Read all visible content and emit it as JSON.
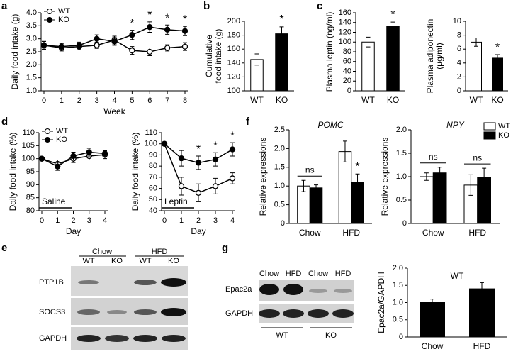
{
  "panel_labels": [
    "a",
    "b",
    "c",
    "d",
    "e",
    "f",
    "g"
  ],
  "chart_data": [
    {
      "type": "line",
      "xlabel": "Week",
      "ylabel": "Daily food intake (g)",
      "xlim": [
        0,
        8
      ],
      "xticks": [
        0,
        1,
        2,
        3,
        4,
        5,
        6,
        7,
        8
      ],
      "ylim": [
        1,
        4
      ],
      "yticks": [
        {
          "value": 1,
          "label": "1.0"
        },
        1.5,
        {
          "value": 2,
          "label": "2.0"
        },
        2.5,
        {
          "value": 3,
          "label": "3.0"
        },
        3.5,
        {
          "value": 4,
          "label": "4.0"
        }
      ],
      "x": [
        0,
        1,
        2,
        3,
        4,
        5,
        6,
        7,
        8
      ],
      "legend": "top-left",
      "series": [
        {
          "name": "WT",
          "color": "#000000",
          "marker_fill": "#ffffff",
          "values": [
            2.75,
            2.65,
            2.7,
            2.75,
            2.95,
            2.55,
            2.5,
            2.65,
            2.7
          ],
          "errors": [
            0.15,
            0.12,
            0.12,
            0.12,
            0.15,
            0.15,
            0.15,
            0.12,
            0.15
          ]
        },
        {
          "name": "KO",
          "color": "#000000",
          "marker_fill": "#000000",
          "values": [
            2.75,
            2.7,
            2.75,
            3.0,
            2.9,
            3.15,
            3.45,
            3.35,
            3.3
          ],
          "errors": [
            0.15,
            0.12,
            0.12,
            0.15,
            0.15,
            0.18,
            0.2,
            0.18,
            0.18
          ]
        }
      ],
      "annotations": [
        {
          "text": "*",
          "x": 5
        },
        {
          "text": "*",
          "x": 6
        },
        {
          "text": "*",
          "x": 7
        },
        {
          "text": "*",
          "x": 8
        }
      ]
    },
    {
      "type": "bar",
      "ylabel": [
        "Cumulative",
        "food intake (g)"
      ],
      "categories": [
        "WT",
        "KO"
      ],
      "values": [
        145,
        182
      ],
      "errors": [
        8,
        10
      ],
      "colors": [
        "#ffffff",
        "#000000"
      ],
      "ylim": [
        100,
        200
      ],
      "yticks": [
        100,
        120,
        140,
        160,
        180,
        200
      ],
      "annotations": [
        {
          "text": "*",
          "category": 1
        }
      ]
    },
    {
      "type": "bar",
      "ylabel": "Plasma leptin (ng/ml)",
      "categories": [
        "WT",
        "KO"
      ],
      "values": [
        100,
        132
      ],
      "errors": [
        10,
        9
      ],
      "colors": [
        "#ffffff",
        "#000000"
      ],
      "ylim": [
        0,
        160
      ],
      "yticks": [
        0,
        20,
        40,
        60,
        80,
        100,
        120,
        140,
        160
      ],
      "annotations": [
        {
          "text": "*",
          "category": 1
        }
      ]
    },
    {
      "type": "bar",
      "ylabel": [
        "Plasma adiponectin",
        "(μg/ml)"
      ],
      "categories": [
        "WT",
        "KO"
      ],
      "values": [
        7,
        4.7
      ],
      "errors": [
        0.6,
        0.5
      ],
      "colors": [
        "#ffffff",
        "#000000"
      ],
      "ylim": [
        0,
        10
      ],
      "yticks": [
        0,
        2,
        4,
        6,
        8,
        10
      ],
      "annotations": [
        {
          "text": "*",
          "category": 1
        }
      ]
    },
    {
      "type": "line",
      "xlabel": "Day",
      "ylabel": "Daily food intake (%)",
      "xlim": [
        0,
        4
      ],
      "xticks": [
        0,
        1,
        2,
        3,
        4
      ],
      "ylim": [
        80,
        110
      ],
      "yticks": [
        80,
        85,
        90,
        95,
        100,
        105,
        110
      ],
      "x": [
        0,
        1,
        2,
        3,
        4
      ],
      "legend": "top-left",
      "inset_label": "Saline",
      "series": [
        {
          "name": "WT",
          "color": "#000000",
          "marker_fill": "#ffffff",
          "values": [
            100,
            98,
            100,
            101,
            101.5
          ],
          "errors": [
            0.5,
            1.5,
            1.5,
            1.5,
            1.5
          ]
        },
        {
          "name": "KO",
          "color": "#000000",
          "marker_fill": "#000000",
          "values": [
            100,
            97,
            101,
            102.5,
            102
          ],
          "errors": [
            0.5,
            1.5,
            1.5,
            1.5,
            1.2
          ]
        }
      ]
    },
    {
      "type": "line",
      "xlabel": "Day",
      "ylabel": "Daily food intake (%)",
      "xlim": [
        0,
        4
      ],
      "xticks": [
        0,
        1,
        2,
        3,
        4
      ],
      "ylim": [
        40,
        110
      ],
      "yticks": [
        40,
        50,
        60,
        70,
        80,
        90,
        100,
        110
      ],
      "x": [
        0,
        1,
        2,
        3,
        4
      ],
      "inset_label": "Leptin",
      "series": [
        {
          "color": "#000000",
          "marker_fill": "#ffffff",
          "values": [
            100,
            62,
            56,
            62,
            69
          ],
          "errors": [
            0.5,
            8,
            8,
            7,
            5
          ]
        },
        {
          "color": "#000000",
          "marker_fill": "#000000",
          "values": [
            100,
            87,
            83,
            86,
            95
          ],
          "errors": [
            0.5,
            7,
            6,
            6,
            6
          ]
        }
      ],
      "annotations": [
        {
          "text": "*",
          "x": 2
        },
        {
          "text": "*",
          "x": 3
        },
        {
          "text": "*",
          "x": 4
        }
      ]
    },
    {
      "type": "bar",
      "title": "POMC",
      "title_italic": true,
      "ylabel": "Relative expressions",
      "categories": [
        "Chow",
        "HFD"
      ],
      "ylim": [
        0,
        2.5
      ],
      "yticks": [
        0,
        0.5,
        {
          "value": 1,
          "label": "1.0"
        },
        1.5,
        {
          "value": 2,
          "label": "2.0"
        },
        2.5
      ],
      "series": [
        {
          "color": "#ffffff",
          "values": [
            1.0,
            1.92
          ],
          "errors": [
            0.15,
            0.28
          ]
        },
        {
          "color": "#000000",
          "values": [
            0.95,
            1.1
          ],
          "errors": [
            0.08,
            0.22
          ]
        }
      ],
      "annotations": [
        {
          "text": "ns",
          "category": 0
        },
        {
          "text": "*",
          "category": 1,
          "series": 1
        }
      ]
    },
    {
      "type": "bar",
      "title": "NPY",
      "title_italic": true,
      "ylabel": "Relative expressions",
      "categories": [
        "Chow",
        "HFD"
      ],
      "legend": "top-right",
      "ylim": [
        0,
        2
      ],
      "yticks": [
        0,
        0.5,
        {
          "value": 1,
          "label": "1.0"
        },
        1.5,
        {
          "value": 2,
          "label": "2.0"
        }
      ],
      "series": [
        {
          "name": "WT",
          "color": "#ffffff",
          "values": [
            1.0,
            0.82
          ],
          "errors": [
            0.08,
            0.22
          ]
        },
        {
          "name": "KO",
          "color": "#000000",
          "values": [
            1.08,
            0.98
          ],
          "errors": [
            0.12,
            0.2
          ]
        }
      ],
      "annotations": [
        {
          "text": "ns",
          "category": 0
        },
        {
          "text": "ns",
          "category": 1
        }
      ]
    },
    {
      "type": "bar",
      "title": "WT",
      "title_inside": true,
      "ylabel": "Epac2a/GAPDH",
      "categories": [
        "Chow",
        "HFD"
      ],
      "values": [
        1.0,
        1.4
      ],
      "errors": [
        0.1,
        0.18
      ],
      "colors": [
        "#000000",
        "#000000"
      ],
      "ylim": [
        0,
        2
      ],
      "yticks": [
        0,
        0.5,
        {
          "value": 1,
          "label": "1.0"
        },
        1.5,
        {
          "value": 2,
          "label": "2.0"
        }
      ]
    }
  ],
  "blots": {
    "e": {
      "groups": [
        "Chow",
        "HFD"
      ],
      "lanes": [
        "WT",
        "KO",
        "WT",
        "KO"
      ],
      "rows": [
        "PTP1B",
        "SOCS3",
        "GAPDH"
      ]
    },
    "g": {
      "lanes": [
        "Chow",
        "HFD",
        "Chow",
        "HFD"
      ],
      "rows": [
        "Epac2a",
        "GAPDH"
      ],
      "groups": [
        "WT",
        "KO"
      ]
    }
  }
}
